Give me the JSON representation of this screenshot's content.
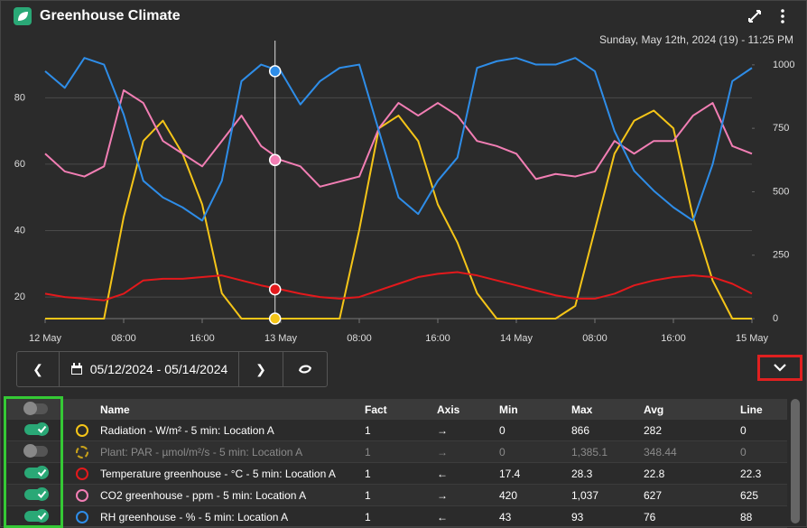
{
  "header": {
    "title": "Greenhouse Climate",
    "timestamp": "Sunday, May 12th, 2024 (19) - 11:25 PM"
  },
  "chart_data": {
    "type": "line",
    "x": [
      0,
      2,
      4,
      6,
      8,
      10,
      12,
      14,
      16,
      18,
      20,
      22,
      24,
      26,
      28,
      30,
      32,
      34,
      36,
      38,
      40,
      42,
      44,
      46,
      48,
      50,
      52,
      54,
      56,
      58,
      60,
      62,
      64,
      66,
      68,
      70,
      72
    ],
    "xlim": [
      0,
      72
    ],
    "xticks": [
      {
        "value": 0,
        "label": "12 May"
      },
      {
        "value": 8,
        "label": "08:00"
      },
      {
        "value": 16,
        "label": "16:00"
      },
      {
        "value": 24,
        "label": "13 May"
      },
      {
        "value": 32,
        "label": "08:00"
      },
      {
        "value": 40,
        "label": "16:00"
      },
      {
        "value": 48,
        "label": "14 May"
      },
      {
        "value": 56,
        "label": "08:00"
      },
      {
        "value": 64,
        "label": "16:00"
      },
      {
        "value": 72,
        "label": "15 May"
      }
    ],
    "ylim": [
      13.5,
      94.5
    ],
    "yticks": [
      20,
      40,
      60,
      80
    ],
    "y2lim": [
      0,
      1060
    ],
    "y2ticks": [
      0,
      250,
      500,
      750,
      1000
    ],
    "grid": true,
    "series": [
      {
        "color": "#f5c518",
        "axis": "y2",
        "values": [
          0,
          0,
          0,
          0,
          400,
          700,
          780,
          650,
          450,
          100,
          0,
          0,
          0,
          0,
          0,
          0,
          350,
          750,
          800,
          700,
          450,
          300,
          100,
          0,
          0,
          0,
          0,
          50,
          350,
          650,
          780,
          820,
          750,
          400,
          150,
          0,
          0
        ]
      },
      {
        "color": "#e3191c",
        "axis": "y",
        "values": [
          21,
          20,
          19.5,
          19,
          21,
          25,
          25.5,
          25.5,
          26,
          26.5,
          25,
          23.5,
          22.3,
          21,
          20,
          19.5,
          20,
          22,
          24,
          26,
          27,
          27.5,
          26.5,
          25,
          23.5,
          22,
          20.5,
          19.5,
          19.5,
          21,
          23.5,
          25,
          26,
          26.5,
          26,
          24,
          21
        ]
      },
      {
        "color": "#f27eb4",
        "axis": "y2",
        "values": [
          650,
          580,
          560,
          600,
          900,
          850,
          700,
          650,
          600,
          700,
          800,
          680,
          625,
          600,
          520,
          540,
          560,
          750,
          850,
          800,
          850,
          800,
          700,
          680,
          650,
          550,
          570,
          560,
          580,
          700,
          650,
          700,
          700,
          800,
          850,
          680,
          650
        ]
      },
      {
        "color": "#2e8de8",
        "axis": "y",
        "values": [
          88,
          83,
          92,
          90,
          75,
          55,
          50,
          47,
          43,
          55,
          85,
          90,
          88,
          78,
          85,
          89,
          90,
          70,
          50,
          45,
          55,
          62,
          89,
          91,
          92,
          90,
          90,
          92,
          88,
          70,
          58,
          52,
          47,
          43,
          60,
          85,
          89
        ]
      }
    ],
    "hover": {
      "x": 23.42,
      "values": [
        0,
        22.3,
        625,
        88
      ]
    }
  },
  "controls": {
    "date_range": "05/12/2024 - 05/14/2024"
  },
  "table": {
    "all_enabled": false,
    "columns": [
      "Name",
      "Fact",
      "Axis",
      "Min",
      "Max",
      "Avg",
      "Line"
    ],
    "rows": [
      {
        "enabled": true,
        "color": "#f5c518",
        "cells": [
          "Radiation - W/m² - 5 min: Location A",
          "1",
          "→",
          "0",
          "866",
          "282",
          "0"
        ]
      },
      {
        "enabled": false,
        "color": "#c9a21a",
        "cells": [
          "Plant: PAR - µmol/m²/s - 5 min: Location A",
          "1",
          "→",
          "0",
          "1,385.1",
          "348.44",
          "0"
        ]
      },
      {
        "enabled": true,
        "color": "#e3191c",
        "cells": [
          "Temperature greenhouse - °C - 5 min: Location A",
          "1",
          "←",
          "17.4",
          "28.3",
          "22.8",
          "22.3"
        ]
      },
      {
        "enabled": true,
        "color": "#f27eb4",
        "cells": [
          "CO2 greenhouse - ppm - 5 min: Location A",
          "1",
          "→",
          "420",
          "1,037",
          "627",
          "625"
        ]
      },
      {
        "enabled": true,
        "color": "#2e8de8",
        "cells": [
          "RH greenhouse - % - 5 min: Location A",
          "1",
          "←",
          "43",
          "93",
          "76",
          "88"
        ]
      }
    ]
  }
}
